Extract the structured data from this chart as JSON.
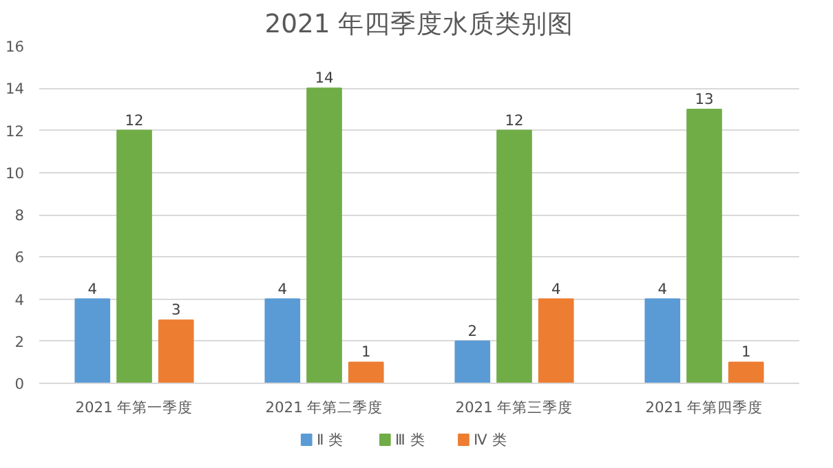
{
  "chart_data": {
    "type": "bar",
    "title": "2021 年四季度水质类别图",
    "categories": [
      "2021 年第一季度",
      "2021 年第二季度",
      "2021 年第三季度",
      "2021 年第四季度"
    ],
    "series": [
      {
        "name": "Ⅱ 类",
        "color": "#5b9bd5",
        "values": [
          4,
          4,
          2,
          4
        ]
      },
      {
        "name": "Ⅲ 类",
        "color": "#70ad47",
        "values": [
          12,
          14,
          12,
          13
        ]
      },
      {
        "name": "Ⅳ 类",
        "color": "#ed7d31",
        "values": [
          3,
          1,
          4,
          1
        ]
      }
    ],
    "ylim": [
      0,
      16
    ],
    "yticks": [
      0,
      2,
      4,
      6,
      8,
      10,
      12,
      14,
      16
    ],
    "grid": "y",
    "legend": "bottom",
    "data_labels": true
  }
}
